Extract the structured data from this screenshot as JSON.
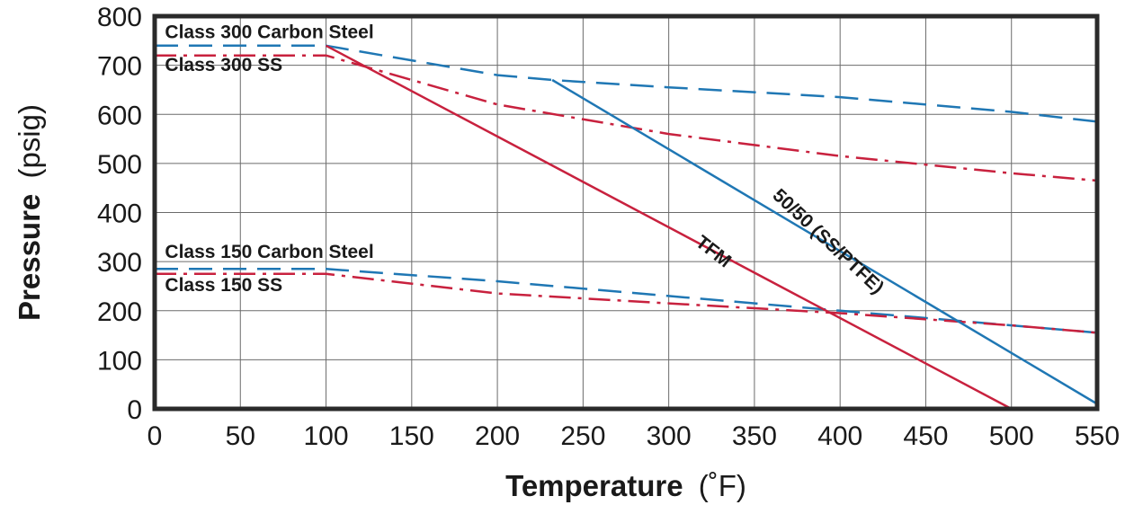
{
  "chart_data": {
    "type": "line",
    "title": "",
    "xlabel": {
      "bold": "Temperature",
      "unit": "(˚F)"
    },
    "ylabel": {
      "bold": "Pressure",
      "unit": "(psig)"
    },
    "xlim": [
      0,
      550
    ],
    "ylim": [
      0,
      800
    ],
    "xticks": [
      0,
      50,
      100,
      150,
      200,
      250,
      300,
      350,
      400,
      450,
      500,
      550
    ],
    "yticks": [
      0,
      100,
      200,
      300,
      400,
      500,
      600,
      700,
      800
    ],
    "grid": true,
    "series": [
      {
        "name": "Class 300 Carbon Steel",
        "color": "#1f77b4",
        "style": "dashed",
        "x": [
          0,
          100,
          200,
          232,
          300,
          400,
          500,
          550
        ],
        "y": [
          740,
          740,
          680,
          670,
          655,
          635,
          605,
          585
        ]
      },
      {
        "name": "Class 300 SS",
        "color": "#c8213e",
        "style": "dashdot",
        "x": [
          0,
          100,
          200,
          300,
          400,
          500,
          550
        ],
        "y": [
          720,
          720,
          620,
          560,
          515,
          480,
          465
        ]
      },
      {
        "name": "Class 150 Carbon Steel",
        "color": "#1f77b4",
        "style": "dashed",
        "x": [
          0,
          100,
          200,
          300,
          400,
          500,
          550
        ],
        "y": [
          285,
          285,
          260,
          230,
          200,
          170,
          155
        ]
      },
      {
        "name": "Class 150 SS",
        "color": "#c8213e",
        "style": "dashdot",
        "x": [
          0,
          100,
          200,
          300,
          400,
          500,
          550
        ],
        "y": [
          275,
          275,
          235,
          215,
          195,
          170,
          155
        ]
      },
      {
        "name": "TFM",
        "color": "#c8213e",
        "style": "solid",
        "x": [
          100,
          500
        ],
        "y": [
          740,
          0
        ]
      },
      {
        "name": "50/50 (SS/PTFE)",
        "color": "#1f77b4",
        "style": "solid",
        "x": [
          232,
          550
        ],
        "y": [
          670,
          10
        ]
      }
    ],
    "annotations": [
      {
        "text": "Class 300 Carbon Steel",
        "x": 6,
        "y": 755,
        "rotate": 0
      },
      {
        "text": "Class 300 SS",
        "x": 6,
        "y": 688,
        "rotate": 0
      },
      {
        "text": "Class 150 Carbon Steel",
        "x": 6,
        "y": 308,
        "rotate": 0
      },
      {
        "text": "Class 150 SS",
        "x": 6,
        "y": 240,
        "rotate": 0
      },
      {
        "text": "TFM",
        "x": 315,
        "y": 335,
        "rotate": 38
      },
      {
        "text": "50/50 (SS/PTFE)",
        "x": 360,
        "y": 432,
        "rotate": 43
      }
    ]
  }
}
